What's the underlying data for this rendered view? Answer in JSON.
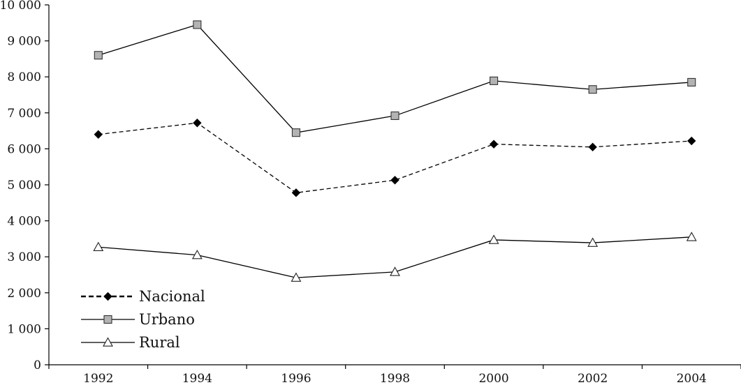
{
  "chart_data": {
    "type": "line",
    "title": "",
    "xlabel": "",
    "ylabel": "",
    "x": [
      "1992",
      "1994",
      "1996",
      "1998",
      "2000",
      "2002",
      "2004"
    ],
    "ylim": [
      0,
      10000
    ],
    "yticks": [
      0,
      1000,
      2000,
      3000,
      4000,
      5000,
      6000,
      7000,
      8000,
      9000,
      10000
    ],
    "ytick_labels": [
      "0",
      "1 000",
      "2 000",
      "3 000",
      "4 000",
      "5 000",
      "6 000",
      "7 000",
      "8 000",
      "9 000",
      "10 000"
    ],
    "grid": false,
    "legend_position": "bottom-left",
    "series": [
      {
        "name": "Nacional",
        "values": [
          6400,
          6720,
          4780,
          5130,
          6130,
          6050,
          6220
        ],
        "line_style": "dashed",
        "marker": "diamond",
        "color": "#000000",
        "marker_fill": "#000000"
      },
      {
        "name": "Urbano",
        "values": [
          8600,
          9450,
          6450,
          6920,
          7890,
          7650,
          7850
        ],
        "line_style": "solid",
        "marker": "square",
        "color": "#000000",
        "marker_fill": "#b3b3b3"
      },
      {
        "name": "Rural",
        "values": [
          3270,
          3050,
          2420,
          2580,
          3470,
          3390,
          3550
        ],
        "line_style": "solid",
        "marker": "triangle",
        "color": "#000000",
        "marker_fill": "#ffffff"
      }
    ]
  }
}
